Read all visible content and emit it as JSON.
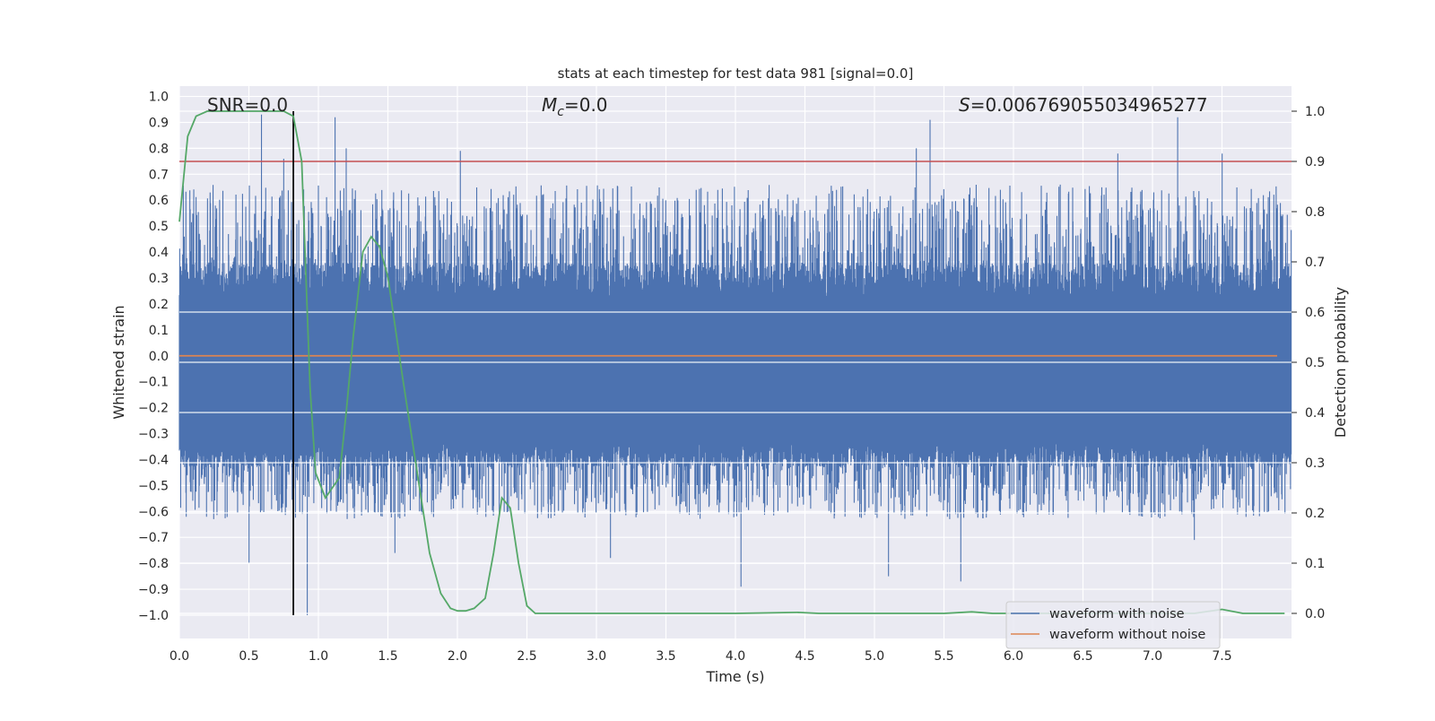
{
  "chart_data": {
    "type": "line",
    "title": "stats at each timestep for test data 981 [signal=0.0]",
    "xlabel": "Time (s)",
    "ylabel": "Whitened strain",
    "y2label": "Detection probability",
    "xlim": [
      0.0,
      8.0
    ],
    "ylim": [
      -1.09,
      1.04
    ],
    "y2lim": [
      -0.05,
      1.05
    ],
    "x_ticks": [
      "0.0",
      "0.5",
      "1.0",
      "1.5",
      "2.0",
      "2.5",
      "3.0",
      "3.5",
      "4.0",
      "4.5",
      "5.0",
      "5.5",
      "6.0",
      "6.5",
      "7.0",
      "7.5"
    ],
    "y_ticks": [
      "1.0",
      "0.9",
      "0.8",
      "0.7",
      "0.6",
      "0.5",
      "0.4",
      "0.3",
      "0.2",
      "0.1",
      "0.0",
      "-0.1",
      "-0.2",
      "-0.3",
      "-0.4",
      "-0.5",
      "-0.6",
      "-0.7",
      "-0.8",
      "-0.9",
      "-1.0"
    ],
    "y2_ticks": [
      "1.0",
      "0.9",
      "0.8",
      "0.7",
      "0.6",
      "0.5",
      "0.4",
      "0.3",
      "0.2",
      "0.1",
      "0.0"
    ],
    "annotations": {
      "snr": "SNR=0.0",
      "mc_symbol": "M",
      "mc_subscript": "c",
      "mc_value": "=0.0",
      "s_symbol": "S",
      "s_value": "=0.006769055034965277"
    },
    "threshold": {
      "value": 0.9,
      "axis": "right",
      "color": "#c44e52"
    },
    "marker_time": 0.82,
    "legend": {
      "position": "lower right",
      "entries": [
        {
          "label": "waveform with noise",
          "color": "#4c72b0"
        },
        {
          "label": "waveform without noise",
          "color": "#dd8452"
        }
      ]
    },
    "series": [
      {
        "name": "waveform with noise",
        "axis": "left",
        "color": "#4c72b0",
        "description": "noisy whitened strain, dense band roughly between -0.45 and +0.35 with spikes up to +0.93 and down to -1.0",
        "peaks_high": [
          [
            0.59,
            0.93
          ],
          [
            1.12,
            0.92
          ],
          [
            5.4,
            0.91
          ],
          [
            7.18,
            0.92
          ],
          [
            7.5,
            0.78
          ],
          [
            0.75,
            0.76
          ],
          [
            5.3,
            0.8
          ],
          [
            1.2,
            0.8
          ],
          [
            2.02,
            0.79
          ],
          [
            6.75,
            0.78
          ]
        ],
        "peaks_low": [
          [
            0.92,
            -1.0
          ],
          [
            5.1,
            -0.85
          ],
          [
            5.62,
            -0.87
          ],
          [
            4.04,
            -0.89
          ],
          [
            0.5,
            -0.8
          ],
          [
            1.55,
            -0.76
          ],
          [
            3.1,
            -0.78
          ],
          [
            7.3,
            -0.71
          ]
        ]
      },
      {
        "name": "waveform without noise",
        "axis": "left",
        "color": "#dd8452",
        "x": [
          0.0,
          8.0
        ],
        "y": [
          0.0,
          0.0
        ]
      },
      {
        "name": "detection probability",
        "axis": "right",
        "color": "#55a868",
        "x": [
          0.0,
          0.06,
          0.12,
          0.2,
          0.3,
          0.45,
          0.6,
          0.75,
          0.82,
          0.88,
          0.94,
          0.98,
          1.05,
          1.1,
          1.15,
          1.2,
          1.25,
          1.32,
          1.38,
          1.44,
          1.5,
          1.6,
          1.7,
          1.8,
          1.88,
          1.95,
          2.0,
          2.06,
          2.12,
          2.2,
          2.26,
          2.32,
          2.38,
          2.44,
          2.5,
          2.56,
          2.62,
          3.0,
          4.0,
          4.45,
          4.6,
          5.5,
          5.7,
          5.85,
          6.0,
          6.5,
          7.0,
          7.3,
          7.5,
          7.65,
          7.8,
          7.95
        ],
        "y": [
          0.78,
          0.95,
          0.99,
          1.0,
          1.0,
          1.0,
          1.0,
          1.0,
          0.99,
          0.9,
          0.45,
          0.28,
          0.23,
          0.25,
          0.27,
          0.4,
          0.55,
          0.72,
          0.75,
          0.73,
          0.67,
          0.48,
          0.3,
          0.12,
          0.04,
          0.01,
          0.005,
          0.005,
          0.01,
          0.03,
          0.12,
          0.23,
          0.21,
          0.1,
          0.015,
          0.0,
          0.0,
          0.0,
          0.0,
          0.002,
          0.0,
          0.0,
          0.003,
          0.0,
          0.0,
          0.0,
          0.0,
          0.0,
          0.008,
          0.0,
          0.0,
          0.0
        ]
      }
    ]
  }
}
